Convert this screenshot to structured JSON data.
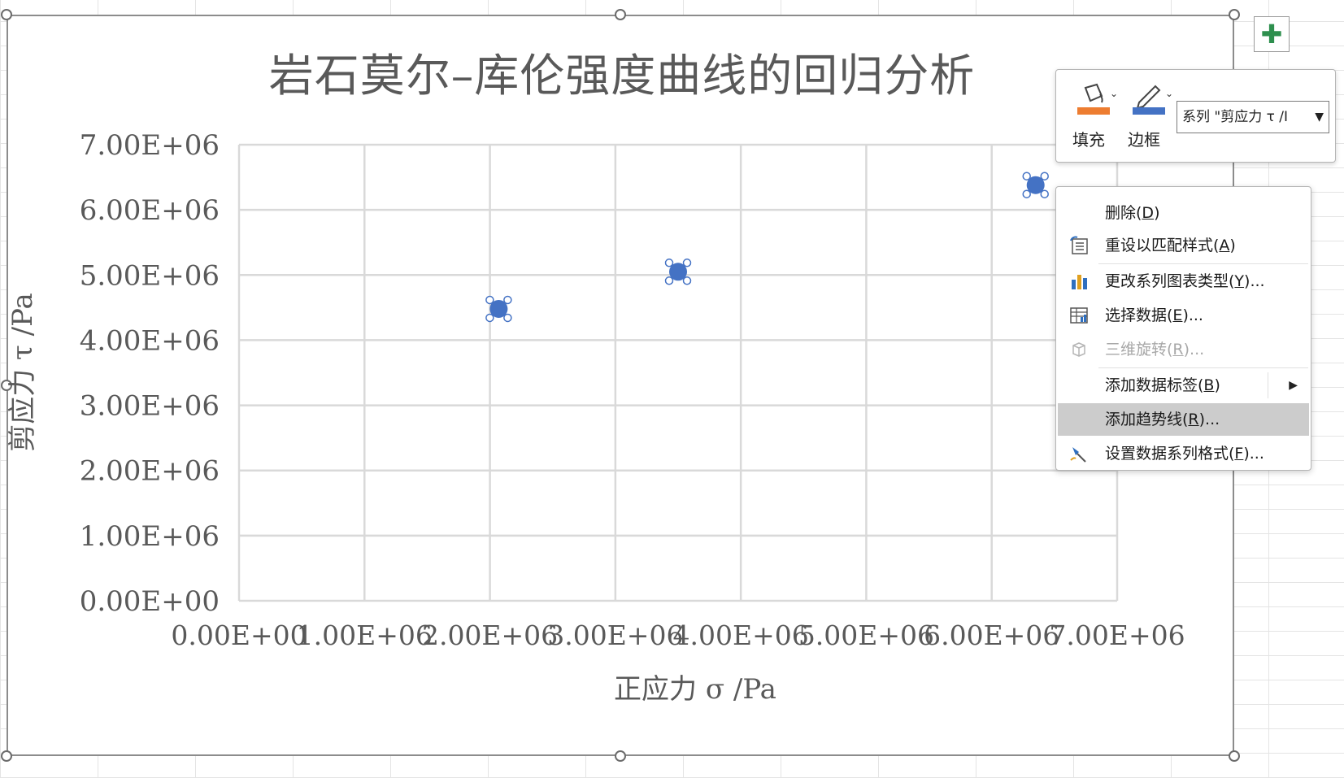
{
  "chart": {
    "title": "岩石莫尔–库伦强度曲线的回归分析",
    "xlabel": "正应力 σ /Pa",
    "ylabel": "剪应力 τ /Pa"
  },
  "chart_data": {
    "type": "scatter",
    "title": "岩石莫尔–库伦强度曲线的回归分析",
    "xlabel": "正应力 σ /Pa",
    "ylabel": "剪应力 τ /Pa",
    "xlim": [
      0,
      7000000
    ],
    "ylim": [
      0,
      7000000
    ],
    "x_ticks": [
      "0.00E+00",
      "1.00E+06",
      "2.00E+06",
      "3.00E+06",
      "4.00E+06",
      "5.00E+06",
      "6.00E+06",
      "7.00E+06"
    ],
    "y_ticks": [
      "0.00E+00",
      "1.00E+06",
      "2.00E+06",
      "3.00E+06",
      "4.00E+06",
      "5.00E+06",
      "6.00E+06",
      "7.00E+06"
    ],
    "grid": true,
    "series": [
      {
        "x": [
          2070000,
          3500000,
          6350000
        ],
        "y": [
          4480000,
          5050000,
          6380000
        ],
        "color": "#4472c4",
        "selected": true
      }
    ]
  },
  "add_chart_element": {
    "icon": "plus-icon"
  },
  "mini_toolbar": {
    "fill_label": "填充",
    "border_label": "边框",
    "series_select_value": "系列 \"剪应力 τ /I",
    "fill_color": "#ed7d31",
    "border_color": "#4472c4"
  },
  "context_menu": {
    "items": [
      {
        "id": "delete",
        "label": "删除(",
        "key": "D",
        "suffix": ")",
        "icon": ""
      },
      {
        "id": "reset",
        "label": "重设以匹配样式(",
        "key": "A",
        "suffix": ")",
        "icon": "reset-style-icon"
      },
      {
        "id": "change-type",
        "label": "更改系列图表类型(",
        "key": "Y",
        "suffix": ")...",
        "icon": "bar-chart-icon"
      },
      {
        "id": "select-data",
        "label": "选择数据(",
        "key": "E",
        "suffix": ")...",
        "icon": "select-data-icon"
      },
      {
        "id": "3d-rotate",
        "label": "三维旋转(",
        "key": "R",
        "suffix": ")...",
        "icon": "cube-icon",
        "disabled": true
      },
      {
        "id": "add-labels",
        "label": "添加数据标签(",
        "key": "B",
        "suffix": ")",
        "icon": "",
        "submenu": true
      },
      {
        "id": "add-trendline",
        "label": "添加趋势线(",
        "key": "R",
        "suffix": ")...",
        "icon": "",
        "hover": true
      },
      {
        "id": "format-series",
        "label": "设置数据系列格式(",
        "key": "F",
        "suffix": ")...",
        "icon": "format-brush-icon"
      }
    ]
  }
}
